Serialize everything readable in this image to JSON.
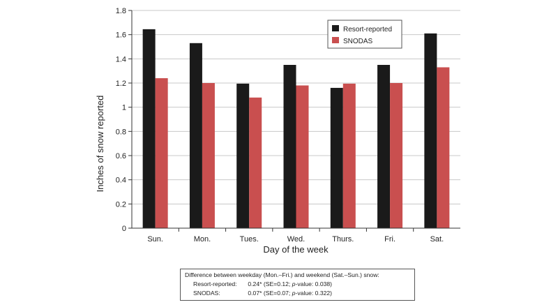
{
  "chart_data": {
    "type": "bar",
    "categories": [
      "Sun.",
      "Mon.",
      "Tues.",
      "Wed.",
      "Thurs.",
      "Fri.",
      "Sat."
    ],
    "series": [
      {
        "name": "Resort-reported",
        "color": "#1a1a1a",
        "values": [
          1.645,
          1.53,
          1.195,
          1.35,
          1.16,
          1.35,
          1.61
        ]
      },
      {
        "name": "SNODAS",
        "color": "#c94f4f",
        "values": [
          1.24,
          1.2,
          1.08,
          1.18,
          1.195,
          1.2,
          1.33
        ]
      }
    ],
    "xlabel": "Day of the week",
    "ylabel": "Inches of snow reported",
    "ylim": [
      0,
      1.8
    ],
    "yticks": [
      "0",
      "0.2",
      "0.4",
      "0.6",
      "0.8",
      "1",
      "1.2",
      "1.4",
      "1.6",
      "1.8"
    ],
    "grid": true,
    "legend_position": "top-right"
  },
  "note": {
    "heading": "Difference between weekday (Mon.–Fri.) and weekend (Sat.–Sun.) snow:",
    "rows": [
      {
        "label": "Resort-reported:",
        "estimate": "0.24*",
        "se": "(SE=0.12;",
        "p_label": "p",
        "p_value": "-value: 0.038)"
      },
      {
        "label": "SNODAS:",
        "estimate": "0.07*",
        "se": "(SE=0.07;",
        "p_label": "p",
        "p_value": "-value: 0.322)"
      }
    ]
  }
}
